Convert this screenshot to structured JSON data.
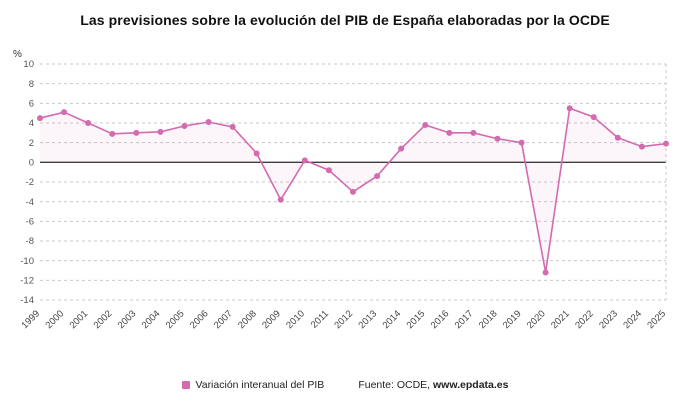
{
  "title": "Las previsiones sobre la evolución del PIB de España elaboradas por la OCDE",
  "y_axis_unit": "%",
  "legend": {
    "series_label": "Variación interanual del PIB",
    "source_prefix": "Fuente: OCDE, ",
    "source_site": "www.epdata.es"
  },
  "colors": {
    "line": "#d36bb0",
    "zero_line": "#3a3a3a",
    "grid": "#c9c9c9",
    "label": "#555555"
  },
  "chart_data": {
    "type": "line",
    "title": "Las previsiones sobre la evolución del PIB de España elaboradas por la OCDE",
    "ylabel": "%",
    "xlabel": "",
    "ylim": [
      -14,
      10
    ],
    "ytick_step": 2,
    "grid": true,
    "legend_position": "bottom",
    "x": [
      1999,
      2000,
      2001,
      2002,
      2003,
      2004,
      2005,
      2006,
      2007,
      2008,
      2009,
      2010,
      2011,
      2012,
      2013,
      2014,
      2015,
      2016,
      2017,
      2018,
      2019,
      2020,
      2021,
      2022,
      2023,
      2024,
      2025
    ],
    "series": [
      {
        "name": "Variación interanual del PIB",
        "values": [
          4.5,
          5.1,
          4.0,
          2.9,
          3.0,
          3.1,
          3.7,
          4.1,
          3.6,
          0.9,
          -3.8,
          0.2,
          -0.8,
          -3.0,
          -1.4,
          1.4,
          3.8,
          3.0,
          3.0,
          2.4,
          2.0,
          -11.2,
          5.5,
          4.6,
          2.5,
          1.6,
          1.9
        ]
      }
    ]
  }
}
